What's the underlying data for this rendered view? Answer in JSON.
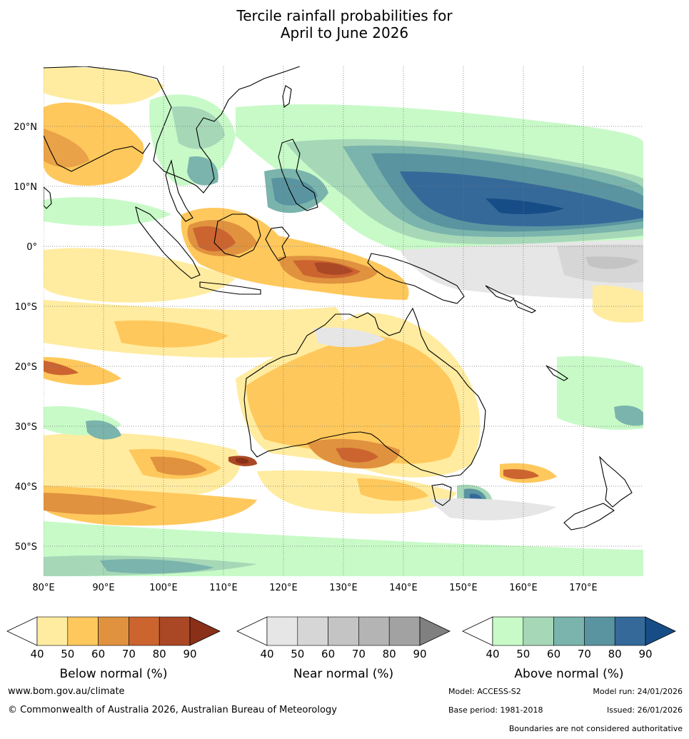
{
  "title": {
    "line1": "Tercile rainfall probabilities for",
    "line2": "April to June 2026"
  },
  "map": {
    "lon_labels": [
      "80°E",
      "90°E",
      "100°E",
      "110°E",
      "120°E",
      "130°E",
      "140°E",
      "150°E",
      "160°E",
      "170°E"
    ],
    "lat_labels": [
      "20°N",
      "10°N",
      "0°",
      "10°S",
      "20°S",
      "30°S",
      "40°S",
      "50°S"
    ],
    "extent": {
      "lon": [
        80,
        180
      ],
      "lat": [
        -55,
        30
      ]
    }
  },
  "colorbars": [
    {
      "name": "below-normal",
      "label": "Below normal (%)",
      "ticks": [
        "40",
        "50",
        "60",
        "70",
        "80",
        "90"
      ],
      "colors": [
        "#ffeca0",
        "#ffc85c",
        "#e0923f",
        "#cc6430",
        "#aa4826",
        "#8a3018"
      ]
    },
    {
      "name": "near-normal",
      "label": "Near normal (%)",
      "ticks": [
        "40",
        "50",
        "60",
        "70",
        "80",
        "90"
      ],
      "colors": [
        "#e6e6e6",
        "#d6d6d6",
        "#c4c4c4",
        "#b4b4b4",
        "#a2a2a2",
        "#808080"
      ]
    },
    {
      "name": "above-normal",
      "label": "Above normal (%)",
      "ticks": [
        "40",
        "50",
        "60",
        "70",
        "80",
        "90"
      ],
      "colors": [
        "#c8fac8",
        "#a6d8b8",
        "#7ab4ac",
        "#5a94a0",
        "#34699a",
        "#174d86"
      ]
    }
  ],
  "footer": {
    "url": "www.bom.gov.au/climate",
    "copyright": "© Commonwealth of Australia 2026, Australian Bureau of Meteorology",
    "model": "Model: ACCESS-S2",
    "model_run": "Model run: 24/01/2026",
    "base_period": "Base period: 1981-2018",
    "issued": "Issued: 26/01/2026",
    "disclaimer": "Boundaries are not considered authoritative"
  }
}
